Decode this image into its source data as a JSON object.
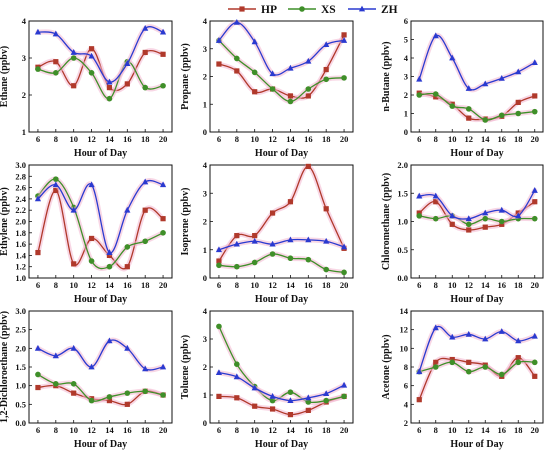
{
  "legend": [
    {
      "name": "HP",
      "color": "#b0392b",
      "marker": "square"
    },
    {
      "name": "XS",
      "color": "#3f8f29",
      "marker": "circle"
    },
    {
      "name": "ZH",
      "color": "#2a3ad0",
      "marker": "triangle"
    }
  ],
  "colors": {
    "highlight": "#f3b6cf"
  },
  "chart_data": [
    {
      "type": "line",
      "ylabel": "Ethane (ppbv)",
      "xlabel": "Hour of Day",
      "xlim": [
        5,
        21
      ],
      "xticks": [
        6,
        8,
        10,
        12,
        14,
        16,
        18,
        20
      ],
      "ylim": [
        1,
        4
      ],
      "yticks": [
        1,
        2,
        3,
        4
      ],
      "x": [
        6,
        8,
        10,
        12,
        14,
        16,
        18,
        20
      ],
      "series": [
        {
          "name": "HP",
          "values": [
            2.75,
            2.9,
            2.25,
            3.25,
            2.2,
            2.3,
            3.15,
            3.1
          ]
        },
        {
          "name": "XS",
          "values": [
            2.7,
            2.6,
            3.0,
            2.6,
            1.9,
            2.9,
            2.2,
            2.25
          ]
        },
        {
          "name": "ZH",
          "values": [
            3.7,
            3.65,
            3.15,
            3.05,
            2.35,
            2.85,
            3.8,
            3.7
          ]
        }
      ]
    },
    {
      "type": "line",
      "ylabel": "Propane (ppbv)",
      "xlabel": "Hour of Day",
      "xlim": [
        5,
        21
      ],
      "xticks": [
        6,
        8,
        10,
        12,
        14,
        16,
        18,
        20
      ],
      "ylim": [
        0,
        4
      ],
      "yticks": [
        0,
        1,
        2,
        3,
        4
      ],
      "x": [
        6,
        8,
        10,
        12,
        14,
        16,
        18,
        20
      ],
      "series": [
        {
          "name": "HP",
          "values": [
            2.45,
            2.2,
            1.45,
            1.55,
            1.3,
            1.3,
            2.25,
            3.5
          ]
        },
        {
          "name": "XS",
          "values": [
            3.3,
            2.65,
            2.15,
            1.55,
            1.1,
            1.55,
            1.9,
            1.95
          ]
        },
        {
          "name": "ZH",
          "values": [
            3.3,
            3.95,
            3.25,
            2.1,
            2.3,
            2.55,
            3.15,
            3.3
          ]
        }
      ]
    },
    {
      "type": "line",
      "ylabel": "n-Butane (ppbv)",
      "xlabel": "Hour of Day",
      "xlim": [
        5,
        21
      ],
      "xticks": [
        6,
        8,
        10,
        12,
        14,
        16,
        18,
        20
      ],
      "ylim": [
        0,
        6
      ],
      "yticks": [
        0,
        1,
        2,
        3,
        4,
        5,
        6
      ],
      "x": [
        6,
        8,
        10,
        12,
        14,
        16,
        18,
        20
      ],
      "series": [
        {
          "name": "HP",
          "values": [
            2.1,
            1.9,
            1.5,
            0.75,
            0.7,
            0.85,
            1.6,
            1.95
          ]
        },
        {
          "name": "XS",
          "values": [
            2.0,
            2.05,
            1.4,
            1.25,
            0.65,
            0.9,
            1.0,
            1.1
          ]
        },
        {
          "name": "ZH",
          "values": [
            2.85,
            5.2,
            4.0,
            2.35,
            2.6,
            2.9,
            3.25,
            3.75
          ]
        }
      ]
    },
    {
      "type": "line",
      "ylabel": "Ethylene (ppbv)",
      "xlabel": "Hour of Day",
      "xlim": [
        5,
        21
      ],
      "xticks": [
        6,
        8,
        10,
        12,
        14,
        16,
        18,
        20
      ],
      "ylim": [
        1.0,
        3.0
      ],
      "yticks": [
        1.0,
        1.2,
        1.4,
        1.6,
        1.8,
        2.0,
        2.2,
        2.4,
        2.6,
        2.8,
        3.0
      ],
      "x": [
        6,
        8,
        10,
        12,
        14,
        16,
        18,
        20
      ],
      "series": [
        {
          "name": "HP",
          "values": [
            1.45,
            2.55,
            1.25,
            1.7,
            1.4,
            1.2,
            2.2,
            2.05
          ]
        },
        {
          "name": "XS",
          "values": [
            2.45,
            2.75,
            2.25,
            1.3,
            1.2,
            1.55,
            1.65,
            1.8
          ]
        },
        {
          "name": "ZH",
          "values": [
            2.4,
            2.65,
            2.2,
            2.65,
            1.45,
            2.2,
            2.7,
            2.65
          ]
        }
      ]
    },
    {
      "type": "line",
      "ylabel": "Isoprene (ppbv)",
      "xlabel": "Hour of Day",
      "xlim": [
        5,
        21
      ],
      "xticks": [
        6,
        8,
        10,
        12,
        14,
        16,
        18,
        20
      ],
      "ylim": [
        0,
        4
      ],
      "yticks": [
        0,
        1,
        2,
        3,
        4
      ],
      "x": [
        6,
        8,
        10,
        12,
        14,
        16,
        18,
        20
      ],
      "series": [
        {
          "name": "HP",
          "values": [
            0.6,
            1.5,
            1.5,
            2.3,
            2.7,
            3.95,
            2.45,
            1.05
          ]
        },
        {
          "name": "XS",
          "values": [
            0.45,
            0.4,
            0.55,
            0.85,
            0.7,
            0.65,
            0.3,
            0.2
          ]
        },
        {
          "name": "ZH",
          "values": [
            1.0,
            1.2,
            1.3,
            1.2,
            1.35,
            1.35,
            1.3,
            1.1
          ]
        }
      ]
    },
    {
      "type": "line",
      "ylabel": "Chloromethane (ppbv)",
      "xlabel": "Hour of Day",
      "xlim": [
        5,
        21
      ],
      "xticks": [
        6,
        8,
        10,
        12,
        14,
        16,
        18,
        20
      ],
      "ylim": [
        0.0,
        2.0
      ],
      "yticks": [
        0.0,
        0.5,
        1.0,
        1.5,
        2.0
      ],
      "x": [
        6,
        8,
        10,
        12,
        14,
        16,
        18,
        20
      ],
      "series": [
        {
          "name": "HP",
          "values": [
            1.15,
            1.35,
            0.95,
            0.85,
            0.9,
            0.95,
            1.15,
            1.35
          ]
        },
        {
          "name": "XS",
          "values": [
            1.1,
            1.05,
            1.1,
            0.95,
            1.05,
            1.0,
            1.05,
            1.05
          ]
        },
        {
          "name": "ZH",
          "values": [
            1.45,
            1.45,
            1.1,
            1.05,
            1.15,
            1.2,
            1.1,
            1.55
          ]
        }
      ]
    },
    {
      "type": "line",
      "ylabel": "1,2-Dichloroethane (ppbv)",
      "xlabel": "Hour of Day",
      "xlim": [
        5,
        21
      ],
      "xticks": [
        6,
        8,
        10,
        12,
        14,
        16,
        18,
        20
      ],
      "ylim": [
        0.0,
        3.0
      ],
      "yticks": [
        0.0,
        0.5,
        1.0,
        1.5,
        2.0,
        2.5,
        3.0
      ],
      "x": [
        6,
        8,
        10,
        12,
        14,
        16,
        18,
        20
      ],
      "series": [
        {
          "name": "HP",
          "values": [
            0.95,
            1.0,
            0.8,
            0.65,
            0.6,
            0.5,
            0.85,
            0.75
          ]
        },
        {
          "name": "XS",
          "values": [
            1.3,
            1.05,
            1.05,
            0.6,
            0.7,
            0.8,
            0.85,
            0.75
          ]
        },
        {
          "name": "ZH",
          "values": [
            2.0,
            1.8,
            2.0,
            1.5,
            2.2,
            2.0,
            1.45,
            1.5
          ]
        }
      ]
    },
    {
      "type": "line",
      "ylabel": "Toluene (ppbv)",
      "xlabel": "Hour of Day",
      "xlim": [
        5,
        21
      ],
      "xticks": [
        6,
        8,
        10,
        12,
        14,
        16,
        18,
        20
      ],
      "ylim": [
        0,
        4
      ],
      "yticks": [
        0,
        1,
        2,
        3,
        4
      ],
      "x": [
        6,
        8,
        10,
        12,
        14,
        16,
        18,
        20
      ],
      "series": [
        {
          "name": "HP",
          "values": [
            0.95,
            0.9,
            0.6,
            0.5,
            0.3,
            0.45,
            0.75,
            0.95
          ]
        },
        {
          "name": "XS",
          "values": [
            3.45,
            2.1,
            1.3,
            0.8,
            1.1,
            0.75,
            0.8,
            0.95
          ]
        },
        {
          "name": "ZH",
          "values": [
            1.8,
            1.65,
            1.25,
            0.95,
            0.8,
            0.9,
            1.05,
            1.35
          ]
        }
      ]
    },
    {
      "type": "line",
      "ylabel": "Acetone (ppbv)",
      "xlabel": "Hour of Day",
      "xlim": [
        5,
        21
      ],
      "xticks": [
        6,
        8,
        10,
        12,
        14,
        16,
        18,
        20
      ],
      "ylim": [
        2,
        14
      ],
      "yticks": [
        2,
        4,
        6,
        8,
        10,
        12,
        14
      ],
      "x": [
        6,
        8,
        10,
        12,
        14,
        16,
        18,
        20
      ],
      "series": [
        {
          "name": "HP",
          "values": [
            4.5,
            8.5,
            8.8,
            8.5,
            8.2,
            7.0,
            9.0,
            7.0
          ]
        },
        {
          "name": "XS",
          "values": [
            7.5,
            8.0,
            8.5,
            7.5,
            8.0,
            7.2,
            8.5,
            8.5
          ]
        },
        {
          "name": "ZH",
          "values": [
            7.5,
            12.2,
            11.2,
            11.5,
            11.0,
            11.8,
            10.8,
            11.3
          ]
        }
      ]
    }
  ]
}
